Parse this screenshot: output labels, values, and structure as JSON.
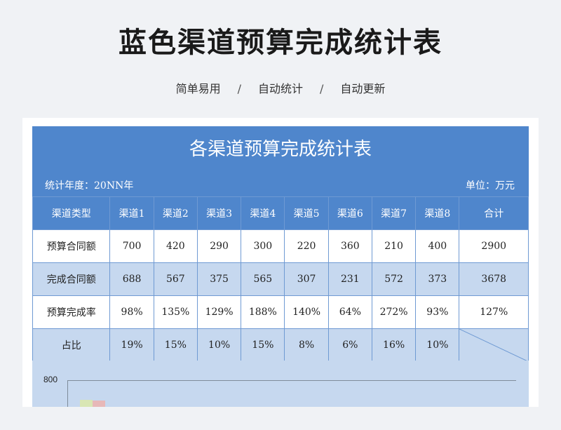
{
  "header": {
    "title": "蓝色渠道预算完成统计表",
    "tags": [
      "简单易用",
      "自动统计",
      "自动更新"
    ],
    "separator": "/"
  },
  "sheet": {
    "title": "各渠道预算完成统计表",
    "year_label": "统计年度：20NN年",
    "unit_label": "单位：万元",
    "columns": [
      "渠道类型",
      "渠道1",
      "渠道2",
      "渠道3",
      "渠道4",
      "渠道5",
      "渠道6",
      "渠道7",
      "渠道8",
      "合计"
    ],
    "rows": [
      {
        "label": "预算合同额",
        "cells": [
          "700",
          "420",
          "290",
          "300",
          "220",
          "360",
          "210",
          "400",
          "2900"
        ]
      },
      {
        "label": "完成合同额",
        "cells": [
          "688",
          "567",
          "375",
          "565",
          "307",
          "231",
          "572",
          "373",
          "3678"
        ]
      },
      {
        "label": "预算完成率",
        "cells": [
          "98%",
          "135%",
          "129%",
          "188%",
          "140%",
          "64%",
          "272%",
          "93%",
          "127%"
        ]
      },
      {
        "label": "占比",
        "cells": [
          "19%",
          "15%",
          "10%",
          "15%",
          "8%",
          "6%",
          "16%",
          "10%",
          ""
        ]
      }
    ]
  },
  "chart": {
    "top_tick": "800"
  },
  "colors": {
    "header_blue": "#4f86cc",
    "light_blue": "#c6d8ef",
    "border_blue": "#6f9ad3"
  }
}
